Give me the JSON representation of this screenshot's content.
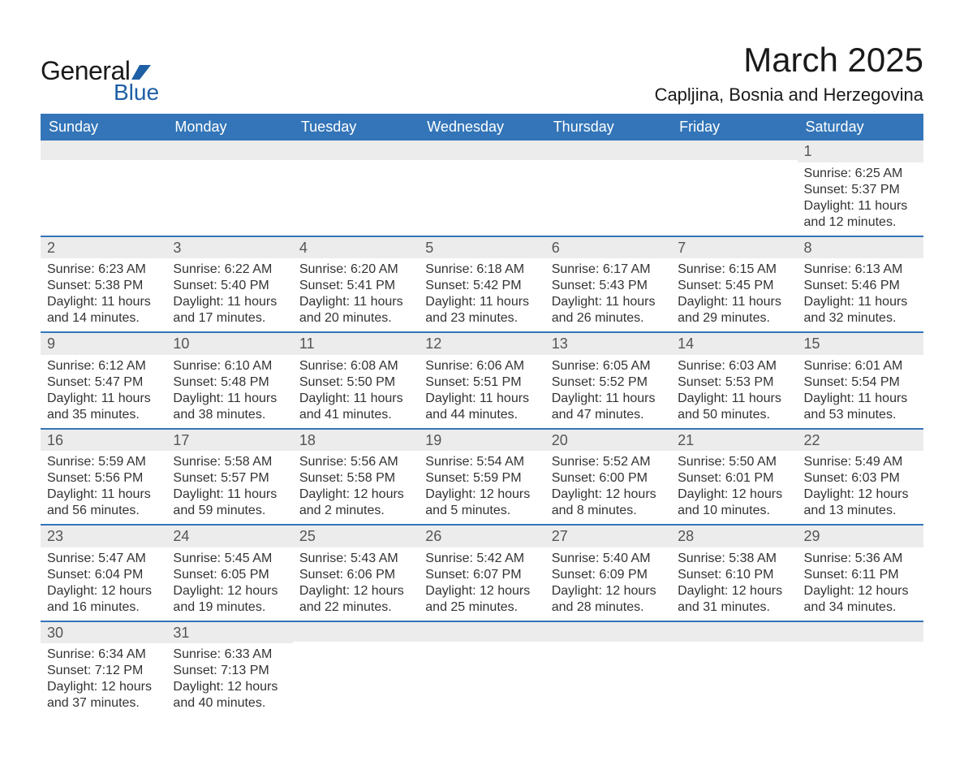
{
  "brand": {
    "line1": "General",
    "line2": "Blue"
  },
  "title": "March 2025",
  "location": "Capljina, Bosnia and Herzegovina",
  "colors": {
    "header_bg": "#3375b8",
    "header_text": "#ffffff",
    "row_border": "#3375b8",
    "daynum_bg": "#ececec",
    "daynum_text": "#555555",
    "body_text": "#333333",
    "page_bg": "#ffffff",
    "logo_accent": "#1f5fa6"
  },
  "weekdays": [
    "Sunday",
    "Monday",
    "Tuesday",
    "Wednesday",
    "Thursday",
    "Friday",
    "Saturday"
  ],
  "weeks": [
    [
      {},
      {},
      {},
      {},
      {},
      {},
      {
        "n": "1",
        "sr": "Sunrise: 6:25 AM",
        "ss": "Sunset: 5:37 PM",
        "d1": "Daylight: 11 hours",
        "d2": "and 12 minutes."
      }
    ],
    [
      {
        "n": "2",
        "sr": "Sunrise: 6:23 AM",
        "ss": "Sunset: 5:38 PM",
        "d1": "Daylight: 11 hours",
        "d2": "and 14 minutes."
      },
      {
        "n": "3",
        "sr": "Sunrise: 6:22 AM",
        "ss": "Sunset: 5:40 PM",
        "d1": "Daylight: 11 hours",
        "d2": "and 17 minutes."
      },
      {
        "n": "4",
        "sr": "Sunrise: 6:20 AM",
        "ss": "Sunset: 5:41 PM",
        "d1": "Daylight: 11 hours",
        "d2": "and 20 minutes."
      },
      {
        "n": "5",
        "sr": "Sunrise: 6:18 AM",
        "ss": "Sunset: 5:42 PM",
        "d1": "Daylight: 11 hours",
        "d2": "and 23 minutes."
      },
      {
        "n": "6",
        "sr": "Sunrise: 6:17 AM",
        "ss": "Sunset: 5:43 PM",
        "d1": "Daylight: 11 hours",
        "d2": "and 26 minutes."
      },
      {
        "n": "7",
        "sr": "Sunrise: 6:15 AM",
        "ss": "Sunset: 5:45 PM",
        "d1": "Daylight: 11 hours",
        "d2": "and 29 minutes."
      },
      {
        "n": "8",
        "sr": "Sunrise: 6:13 AM",
        "ss": "Sunset: 5:46 PM",
        "d1": "Daylight: 11 hours",
        "d2": "and 32 minutes."
      }
    ],
    [
      {
        "n": "9",
        "sr": "Sunrise: 6:12 AM",
        "ss": "Sunset: 5:47 PM",
        "d1": "Daylight: 11 hours",
        "d2": "and 35 minutes."
      },
      {
        "n": "10",
        "sr": "Sunrise: 6:10 AM",
        "ss": "Sunset: 5:48 PM",
        "d1": "Daylight: 11 hours",
        "d2": "and 38 minutes."
      },
      {
        "n": "11",
        "sr": "Sunrise: 6:08 AM",
        "ss": "Sunset: 5:50 PM",
        "d1": "Daylight: 11 hours",
        "d2": "and 41 minutes."
      },
      {
        "n": "12",
        "sr": "Sunrise: 6:06 AM",
        "ss": "Sunset: 5:51 PM",
        "d1": "Daylight: 11 hours",
        "d2": "and 44 minutes."
      },
      {
        "n": "13",
        "sr": "Sunrise: 6:05 AM",
        "ss": "Sunset: 5:52 PM",
        "d1": "Daylight: 11 hours",
        "d2": "and 47 minutes."
      },
      {
        "n": "14",
        "sr": "Sunrise: 6:03 AM",
        "ss": "Sunset: 5:53 PM",
        "d1": "Daylight: 11 hours",
        "d2": "and 50 minutes."
      },
      {
        "n": "15",
        "sr": "Sunrise: 6:01 AM",
        "ss": "Sunset: 5:54 PM",
        "d1": "Daylight: 11 hours",
        "d2": "and 53 minutes."
      }
    ],
    [
      {
        "n": "16",
        "sr": "Sunrise: 5:59 AM",
        "ss": "Sunset: 5:56 PM",
        "d1": "Daylight: 11 hours",
        "d2": "and 56 minutes."
      },
      {
        "n": "17",
        "sr": "Sunrise: 5:58 AM",
        "ss": "Sunset: 5:57 PM",
        "d1": "Daylight: 11 hours",
        "d2": "and 59 minutes."
      },
      {
        "n": "18",
        "sr": "Sunrise: 5:56 AM",
        "ss": "Sunset: 5:58 PM",
        "d1": "Daylight: 12 hours",
        "d2": "and 2 minutes."
      },
      {
        "n": "19",
        "sr": "Sunrise: 5:54 AM",
        "ss": "Sunset: 5:59 PM",
        "d1": "Daylight: 12 hours",
        "d2": "and 5 minutes."
      },
      {
        "n": "20",
        "sr": "Sunrise: 5:52 AM",
        "ss": "Sunset: 6:00 PM",
        "d1": "Daylight: 12 hours",
        "d2": "and 8 minutes."
      },
      {
        "n": "21",
        "sr": "Sunrise: 5:50 AM",
        "ss": "Sunset: 6:01 PM",
        "d1": "Daylight: 12 hours",
        "d2": "and 10 minutes."
      },
      {
        "n": "22",
        "sr": "Sunrise: 5:49 AM",
        "ss": "Sunset: 6:03 PM",
        "d1": "Daylight: 12 hours",
        "d2": "and 13 minutes."
      }
    ],
    [
      {
        "n": "23",
        "sr": "Sunrise: 5:47 AM",
        "ss": "Sunset: 6:04 PM",
        "d1": "Daylight: 12 hours",
        "d2": "and 16 minutes."
      },
      {
        "n": "24",
        "sr": "Sunrise: 5:45 AM",
        "ss": "Sunset: 6:05 PM",
        "d1": "Daylight: 12 hours",
        "d2": "and 19 minutes."
      },
      {
        "n": "25",
        "sr": "Sunrise: 5:43 AM",
        "ss": "Sunset: 6:06 PM",
        "d1": "Daylight: 12 hours",
        "d2": "and 22 minutes."
      },
      {
        "n": "26",
        "sr": "Sunrise: 5:42 AM",
        "ss": "Sunset: 6:07 PM",
        "d1": "Daylight: 12 hours",
        "d2": "and 25 minutes."
      },
      {
        "n": "27",
        "sr": "Sunrise: 5:40 AM",
        "ss": "Sunset: 6:09 PM",
        "d1": "Daylight: 12 hours",
        "d2": "and 28 minutes."
      },
      {
        "n": "28",
        "sr": "Sunrise: 5:38 AM",
        "ss": "Sunset: 6:10 PM",
        "d1": "Daylight: 12 hours",
        "d2": "and 31 minutes."
      },
      {
        "n": "29",
        "sr": "Sunrise: 5:36 AM",
        "ss": "Sunset: 6:11 PM",
        "d1": "Daylight: 12 hours",
        "d2": "and 34 minutes."
      }
    ],
    [
      {
        "n": "30",
        "sr": "Sunrise: 6:34 AM",
        "ss": "Sunset: 7:12 PM",
        "d1": "Daylight: 12 hours",
        "d2": "and 37 minutes."
      },
      {
        "n": "31",
        "sr": "Sunrise: 6:33 AM",
        "ss": "Sunset: 7:13 PM",
        "d1": "Daylight: 12 hours",
        "d2": "and 40 minutes."
      },
      {},
      {},
      {},
      {},
      {}
    ]
  ]
}
